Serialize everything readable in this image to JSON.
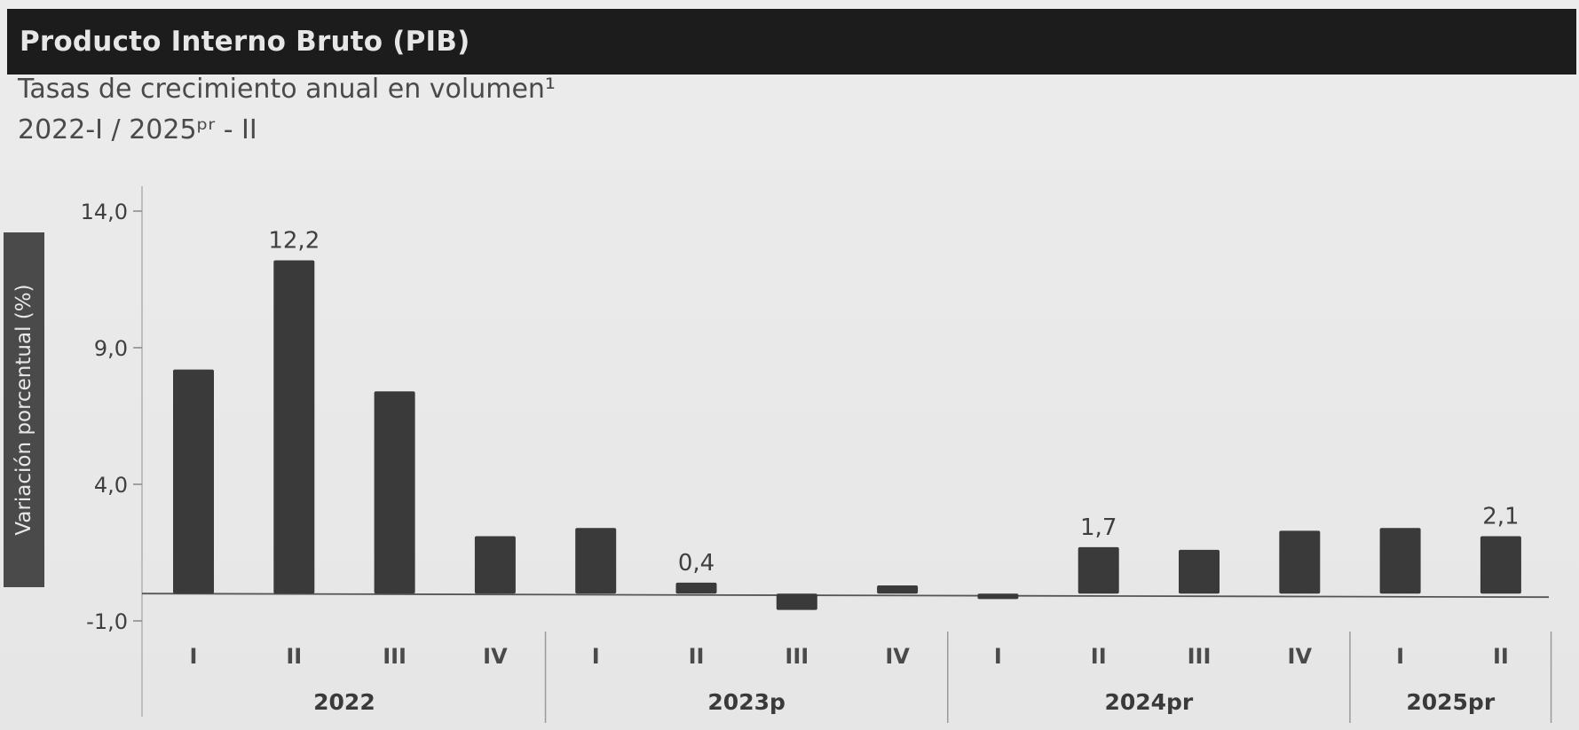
{
  "header": {
    "title": "Producto Interno Bruto (PIB)"
  },
  "subtitle": {
    "line1": "Tasas de crecimiento anual en volumen¹",
    "line2": "2022-I / 2025ᵖʳ - II"
  },
  "chart_data": {
    "type": "bar",
    "title": "Producto Interno Bruto (PIB)",
    "subtitle": "Tasas de crecimiento anual en volumen¹ 2022-I / 2025ᵖʳ - II",
    "ylabel": "Variación porcentual (%)",
    "xlabel": "",
    "ylim": [
      -1.0,
      14.0
    ],
    "yticks": [
      14.0,
      9.0,
      4.0,
      -1.0
    ],
    "ytick_labels": [
      "14,0",
      "9,0",
      "4,0",
      "-1,0"
    ],
    "grid": false,
    "legend": "none",
    "bar_color": "#3a3a3a",
    "categories": [
      "I",
      "II",
      "III",
      "IV",
      "I",
      "II",
      "III",
      "IV",
      "I",
      "II",
      "III",
      "IV",
      "I",
      "II"
    ],
    "groups": [
      {
        "label": "2022",
        "count": 4
      },
      {
        "label": "2023p",
        "count": 4
      },
      {
        "label": "2024pr",
        "count": 4
      },
      {
        "label": "2025pr",
        "count": 2
      }
    ],
    "values": [
      8.2,
      12.2,
      7.4,
      2.1,
      2.4,
      0.4,
      -0.6,
      0.3,
      -0.2,
      1.7,
      1.6,
      2.3,
      2.4,
      2.1
    ],
    "data_labels": [
      "",
      "12,2",
      "",
      "",
      "",
      "0,4",
      "",
      "",
      "",
      "1,7",
      "",
      "",
      "",
      "2,1"
    ]
  }
}
